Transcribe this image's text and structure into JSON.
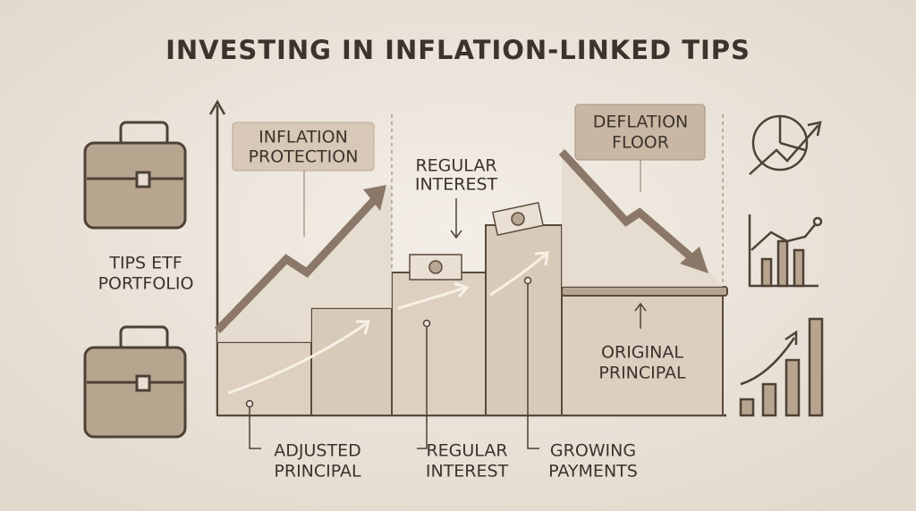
{
  "title": "INVESTING IN INFLATION-LINKED TIPS",
  "labels": {
    "inflation_protection": [
      "INFLATION",
      "PROTECTION"
    ],
    "regular_interest_top": [
      "REGULAR",
      "INTEREST"
    ],
    "deflation_floor": [
      "DEFLATION",
      "FLOOR"
    ],
    "tips_etf_portfolio": [
      "TIPS ETF",
      "PORTFOLIO"
    ],
    "original_principal": [
      "ORIGINAL",
      "PRINCIPAL"
    ],
    "adjusted_principal": [
      "ADJUSTED",
      "PRINCIPAL"
    ],
    "regular_interest_bottom": [
      "REGULAR",
      "INTEREST"
    ],
    "growing_payments": [
      "GROWING",
      "PAYMENTS"
    ]
  }
}
